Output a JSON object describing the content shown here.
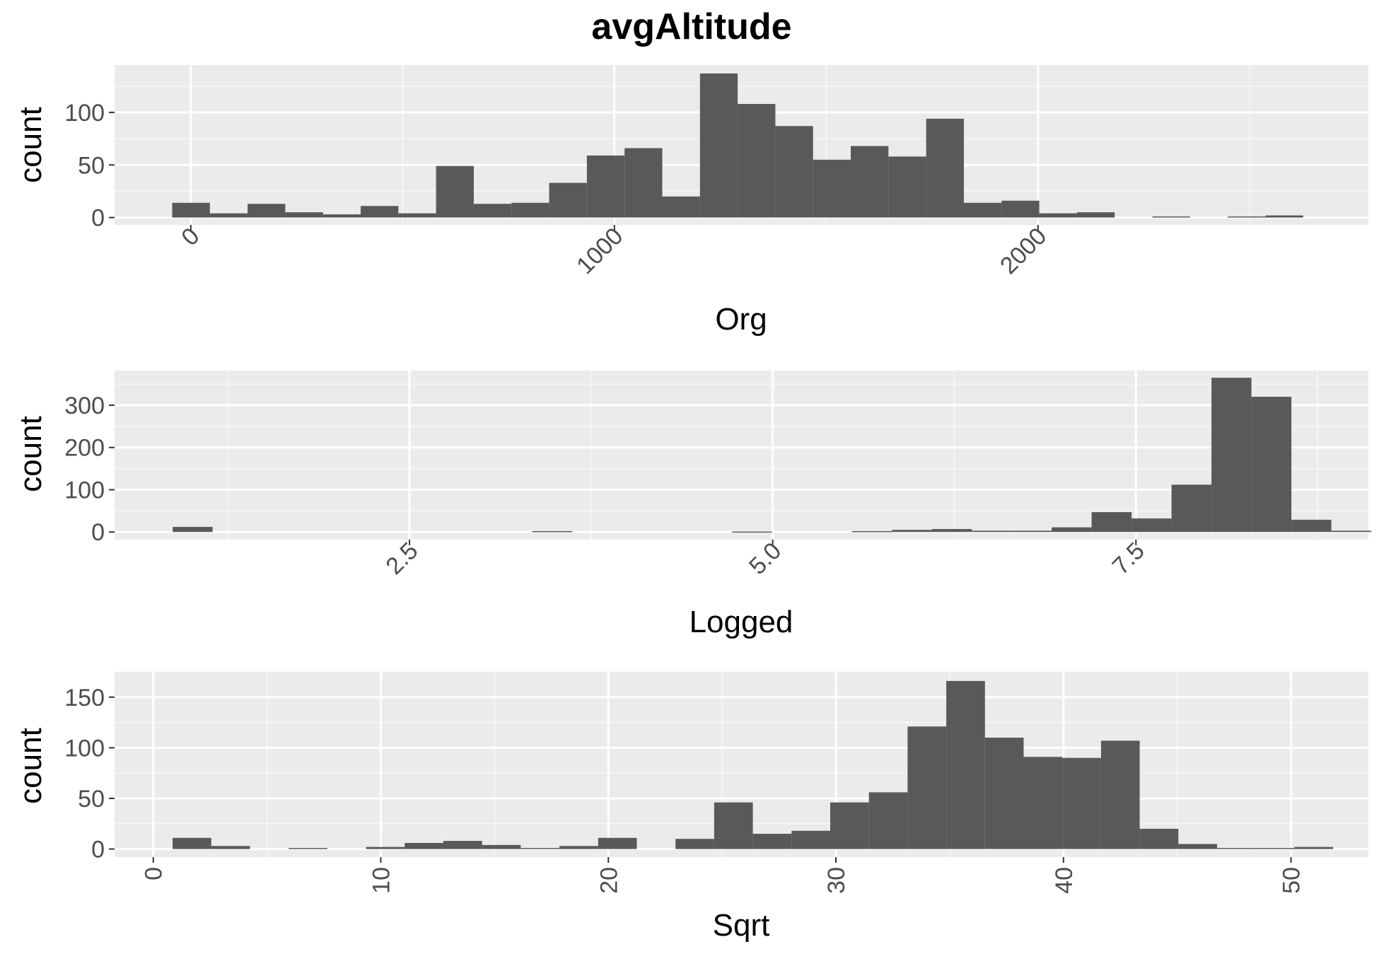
{
  "chart_data": {
    "title": "avgAltitude",
    "panels": [
      {
        "type": "bar",
        "subtype": "histogram",
        "xlabel": "Org",
        "ylabel": "count",
        "xlim": [
          -180,
          2780
        ],
        "ylim": [
          -7,
          145
        ],
        "xticks": [
          0,
          1000,
          2000
        ],
        "xtick_labels": [
          "0",
          "1000",
          "2000"
        ],
        "xtick_rotation": 45,
        "yticks": [
          0,
          50,
          100
        ],
        "ytick_labels": [
          "0",
          "50",
          "100"
        ],
        "bin_width": 89,
        "bin_starts": [
          -44,
          45,
          134,
          223,
          312,
          401,
          490,
          579,
          668,
          757,
          846,
          935,
          1024,
          1113,
          1202,
          1291,
          1380,
          1469,
          1558,
          1647,
          1736,
          1825,
          1914,
          2003,
          2092,
          2181,
          2270,
          2359,
          2448,
          2537
        ],
        "counts": [
          14,
          4,
          13,
          5,
          3,
          11,
          4,
          49,
          13,
          14,
          33,
          59,
          66,
          20,
          137,
          108,
          87,
          55,
          68,
          58,
          94,
          14,
          16,
          4,
          5,
          0,
          1,
          0,
          1,
          2
        ],
        "grid": true
      },
      {
        "type": "bar",
        "subtype": "histogram",
        "xlabel": "Logged",
        "ylabel": "count",
        "xlim": [
          0.47,
          9.1
        ],
        "ylim": [
          -18,
          382
        ],
        "xticks": [
          2.5,
          5.0,
          7.5
        ],
        "xtick_labels": [
          "2.5",
          "5.0",
          "7.5"
        ],
        "xtick_rotation": 45,
        "yticks": [
          0,
          100,
          200,
          300
        ],
        "ytick_labels": [
          "0",
          "100",
          "200",
          "300"
        ],
        "bin_width": 0.275,
        "bin_starts": [
          0.87,
          1.145,
          1.42,
          1.695,
          1.97,
          2.245,
          2.52,
          2.795,
          3.07,
          3.345,
          3.62,
          3.895,
          4.17,
          4.445,
          4.72,
          4.995,
          5.27,
          5.545,
          5.82,
          6.095,
          6.37,
          6.645,
          6.92,
          7.195,
          7.47,
          7.745,
          8.02,
          8.295,
          8.57,
          8.845
        ],
        "counts": [
          12,
          0,
          0,
          0,
          0,
          0,
          0,
          0,
          0,
          2,
          0,
          0,
          0,
          0,
          1,
          0,
          0,
          2,
          5,
          7,
          3,
          3,
          11,
          47,
          32,
          112,
          365,
          320,
          29,
          3
        ],
        "grid": true
      },
      {
        "type": "bar",
        "subtype": "histogram",
        "xlabel": "Sqrt",
        "ylabel": "count",
        "xlim": [
          -1.7,
          53.4
        ],
        "ylim": [
          -8,
          175
        ],
        "xticks": [
          0,
          10,
          20,
          30,
          40,
          50
        ],
        "xtick_labels": [
          "0",
          "10",
          "20",
          "30",
          "40",
          "50"
        ],
        "xtick_rotation": 90,
        "yticks": [
          0,
          50,
          100,
          150
        ],
        "ytick_labels": [
          "0",
          "50",
          "100",
          "150"
        ],
        "bin_width": 1.7,
        "bin_starts": [
          0.85,
          2.55,
          4.25,
          5.95,
          7.65,
          9.35,
          11.05,
          12.75,
          14.45,
          16.15,
          17.85,
          19.55,
          21.25,
          22.95,
          24.65,
          26.35,
          28.05,
          29.75,
          31.45,
          33.15,
          34.85,
          36.55,
          38.25,
          39.95,
          41.65,
          43.35,
          45.05,
          46.75,
          48.45,
          50.15
        ],
        "counts": [
          11,
          3,
          0,
          1,
          0,
          2,
          6,
          8,
          4,
          1,
          3,
          11,
          0,
          10,
          46,
          15,
          18,
          46,
          56,
          121,
          166,
          110,
          91,
          90,
          107,
          20,
          5,
          1,
          1,
          2
        ],
        "grid": true
      }
    ]
  }
}
